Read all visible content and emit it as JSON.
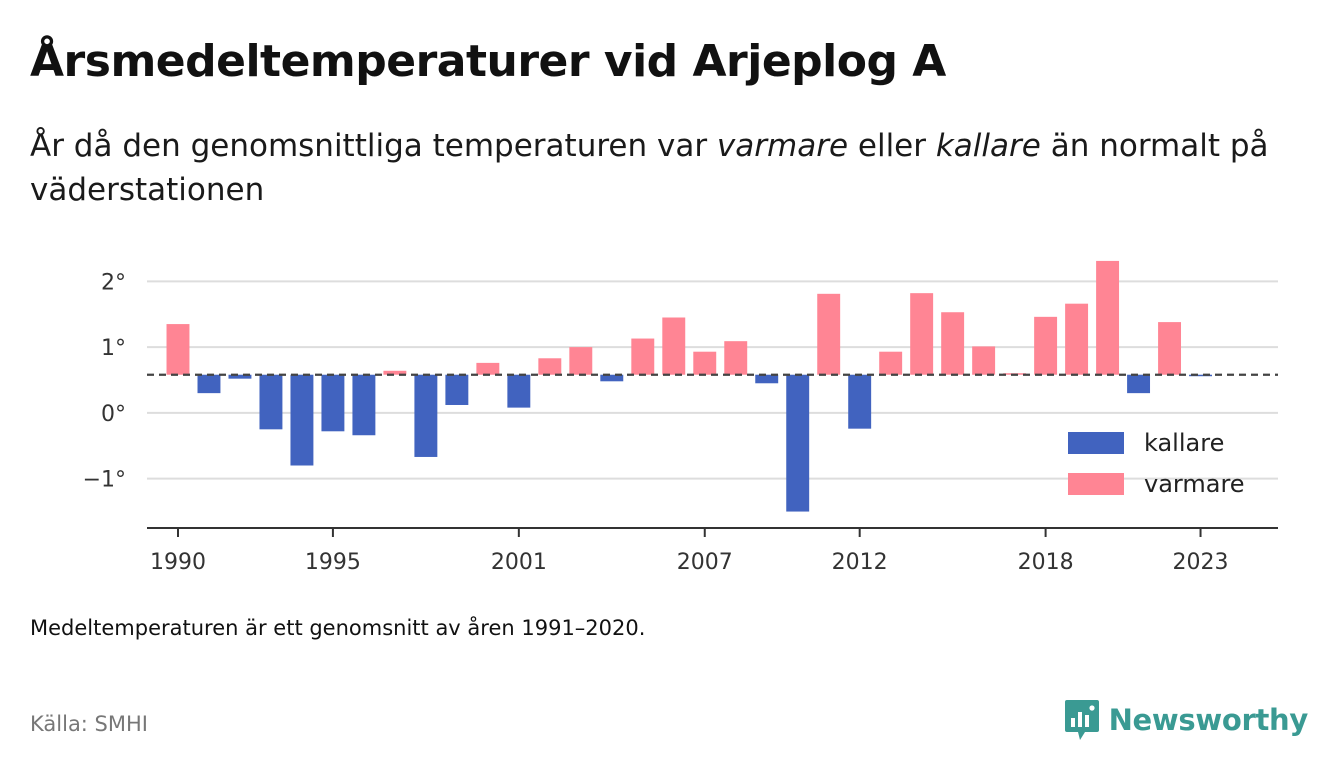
{
  "title": "Årsmedeltemperaturer vid Arjeplog A",
  "subtitle": {
    "p1": "År då den genomsnittliga temperaturen var ",
    "w1": "varmare",
    "p2": " eller ",
    "w2": "kallare",
    "p3": " än normalt på väderstationen"
  },
  "note": "Medeltemperaturen är ett genomsnitt av åren 1991–2020.",
  "source": "Källa: SMHI",
  "brand": {
    "name": "Newsworthy",
    "icon": "newsworthy-logo-icon",
    "color": "#3a9a93"
  },
  "chart_data": {
    "type": "bar",
    "baseline": 0.58,
    "ylim": [
      -1.75,
      2.4
    ],
    "xlim": [
      1989.0,
      2025.5
    ],
    "yticks": [
      {
        "value": 2,
        "label": "2°"
      },
      {
        "value": 1,
        "label": "1°"
      },
      {
        "value": 0,
        "label": "0°"
      },
      {
        "value": -1,
        "label": "−1°"
      }
    ],
    "xticks": [
      {
        "value": 1990,
        "label": "1990"
      },
      {
        "value": 1995,
        "label": "1995"
      },
      {
        "value": 2001,
        "label": "2001"
      },
      {
        "value": 2007,
        "label": "2007"
      },
      {
        "value": 2012,
        "label": "2012"
      },
      {
        "value": 2018,
        "label": "2018"
      },
      {
        "value": 2023,
        "label": "2023"
      }
    ],
    "colors": {
      "kallare": "#4163bf",
      "varmare": "#ff8594"
    },
    "legend": [
      {
        "key": "kallare",
        "label": "kallare"
      },
      {
        "key": "varmare",
        "label": "varmare"
      }
    ],
    "legend_position": "bottom-right",
    "grid": true,
    "bars": [
      {
        "year": 1990,
        "value": 1.35
      },
      {
        "year": 1991,
        "value": 0.3
      },
      {
        "year": 1992,
        "value": 0.52
      },
      {
        "year": 1993,
        "value": -0.25
      },
      {
        "year": 1994,
        "value": -0.8
      },
      {
        "year": 1995,
        "value": -0.28
      },
      {
        "year": 1996,
        "value": -0.34
      },
      {
        "year": 1997,
        "value": 0.64
      },
      {
        "year": 1998,
        "value": -0.67
      },
      {
        "year": 1999,
        "value": 0.12
      },
      {
        "year": 2000,
        "value": 0.76
      },
      {
        "year": 2001,
        "value": 0.08
      },
      {
        "year": 2002,
        "value": 0.83
      },
      {
        "year": 2003,
        "value": 1.0
      },
      {
        "year": 2004,
        "value": 0.48
      },
      {
        "year": 2005,
        "value": 1.13
      },
      {
        "year": 2006,
        "value": 1.45
      },
      {
        "year": 2007,
        "value": 0.93
      },
      {
        "year": 2008,
        "value": 1.09
      },
      {
        "year": 2009,
        "value": 0.45
      },
      {
        "year": 2010,
        "value": -1.5
      },
      {
        "year": 2011,
        "value": 1.81
      },
      {
        "year": 2012,
        "value": -0.24
      },
      {
        "year": 2013,
        "value": 0.93
      },
      {
        "year": 2014,
        "value": 1.82
      },
      {
        "year": 2015,
        "value": 1.53
      },
      {
        "year": 2016,
        "value": 1.01
      },
      {
        "year": 2017,
        "value": 0.59
      },
      {
        "year": 2018,
        "value": 1.46
      },
      {
        "year": 2019,
        "value": 1.66
      },
      {
        "year": 2020,
        "value": 2.31
      },
      {
        "year": 2021,
        "value": 0.3
      },
      {
        "year": 2022,
        "value": 1.38
      },
      {
        "year": 2023,
        "value": 0.56
      }
    ]
  }
}
